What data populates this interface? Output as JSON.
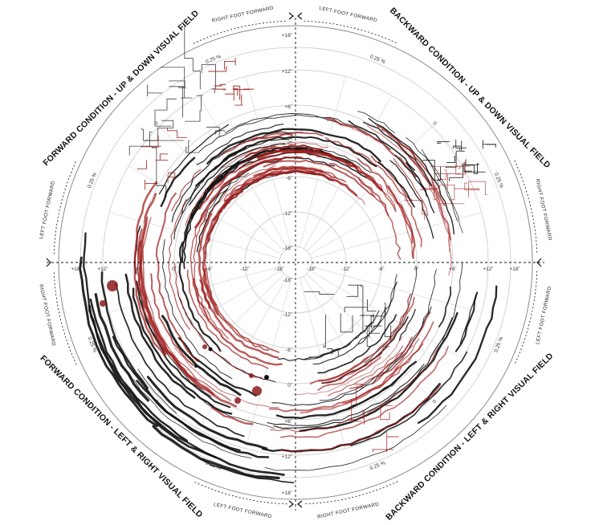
{
  "quadrant_titles": {
    "top_left": "FORWARD CONDITION - UP & DOWN VISUAL FIELD",
    "top_right": "BACKWARD CONDITION - UP & DOWN VISUAL FIELD",
    "bottom_left": "FORWARD CONDITION - LEFT & RIGHT VISUAL FIELD",
    "bottom_right": "BACKWARD CONDITION - LEFT & RIGHT VISUAL FIELD"
  },
  "foot_labels": {
    "top_left": "RIGHT FOOT FORWARD",
    "top_right": "LEFT FOOT FORWARD",
    "left_upper": "LEFT FOOT FORWARD",
    "left_lower": "RIGHT FOOT FORWARD",
    "right_upper": "RIGHT FOOT FORWARD",
    "right_lower": "LEFT FOOT FORWARD",
    "bottom_left": "LEFT FOOT FORWARD",
    "bottom_right": "RIGHT FOOT FORWARD"
  },
  "vertical_axis_ticks_top": [
    "+18˚",
    "+12˚",
    "+6˚",
    "0˚",
    "-6˚",
    "-12˚",
    "-18˚"
  ],
  "vertical_axis_ticks_bottom": [
    "-18˚",
    "-12˚",
    "-6˚",
    "0˚",
    "+6˚",
    "+12˚",
    "+18˚"
  ],
  "horizontal_axis_ticks_left": [
    "+18˚",
    "+12˚",
    "+6˚",
    "0˚",
    "-6˚",
    "-12˚",
    "-18˚"
  ],
  "horizontal_axis_ticks_right": [
    "-18˚",
    "-12˚",
    "-6˚",
    "0˚",
    "+6˚",
    "+12˚",
    "+18˚"
  ],
  "ring_labels": {
    "time_mid": "0.25 %",
    "time_zero": "0"
  },
  "colors": {
    "trace_red": "#9e1c1c",
    "trace_black": "#111111",
    "grid": "#c9c9c9"
  }
}
